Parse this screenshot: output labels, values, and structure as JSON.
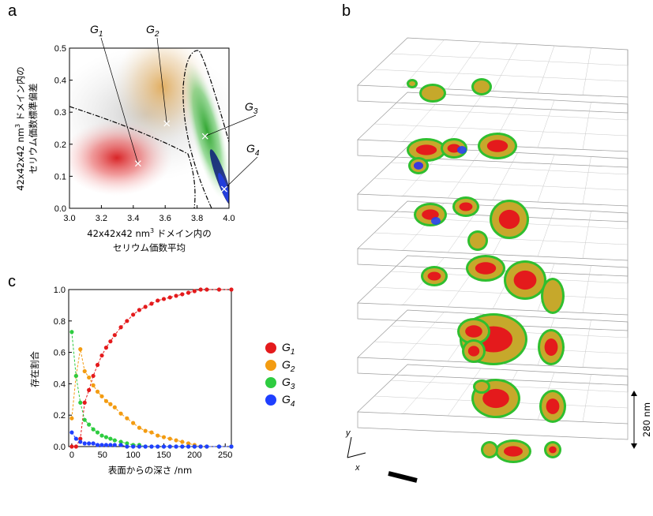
{
  "panels": {
    "a": "a",
    "b": "b",
    "c": "c"
  },
  "colors": {
    "G1": "#e41a1c",
    "G2": "#f39c12",
    "G3": "#2ecc40",
    "G4": "#1f3fff"
  },
  "chart_data": [
    {
      "type": "scatter",
      "panel": "a",
      "xlabel_line1": "42x42x42 nm",
      "xlabel_sup": "3",
      "xlabel_line1_rest": " ドメイン内の",
      "xlabel_line2": "セリウム価数平均",
      "ylabel_line1": "42x42x42 nm",
      "ylabel_sup": "3",
      "ylabel_line1_rest": " ドメイン内の",
      "ylabel_line2": "セリウム価数標準偏差",
      "xlim": [
        3.0,
        4.0
      ],
      "ylim": [
        0.0,
        0.5
      ],
      "xticks": [
        "3.0",
        "3.2",
        "3.4",
        "3.6",
        "3.8",
        "4.0"
      ],
      "yticks": [
        "0.0",
        "0.1",
        "0.2",
        "0.3",
        "0.4",
        "0.5"
      ],
      "centroids": [
        {
          "name": "G",
          "sub": "1",
          "x": 3.43,
          "y": 0.14
        },
        {
          "name": "G",
          "sub": "2",
          "x": 3.61,
          "y": 0.265
        },
        {
          "name": "G",
          "sub": "3",
          "x": 3.85,
          "y": 0.225
        },
        {
          "name": "G",
          "sub": "4",
          "x": 3.97,
          "y": 0.06
        }
      ]
    },
    {
      "type": "line",
      "panel": "c",
      "xlabel": "表面からの深さ /nm",
      "ylabel": "存在割合",
      "xlim": [
        -5,
        260
      ],
      "ylim": [
        0.0,
        1.0
      ],
      "xticks": [
        "0",
        "50",
        "100",
        "150",
        "200",
        "250"
      ],
      "yticks": [
        "0.0",
        "0.2",
        "0.4",
        "0.6",
        "0.8",
        "1.0"
      ],
      "x": [
        0,
        7,
        14,
        21,
        28,
        35,
        42,
        49,
        56,
        63,
        70,
        80,
        90,
        100,
        110,
        120,
        130,
        140,
        150,
        160,
        170,
        180,
        190,
        200,
        210,
        220,
        240,
        260
      ],
      "series": [
        {
          "name": "G",
          "sub": "1",
          "values": [
            0.0,
            0.0,
            0.05,
            0.28,
            0.36,
            0.45,
            0.52,
            0.58,
            0.63,
            0.67,
            0.71,
            0.76,
            0.8,
            0.84,
            0.87,
            0.89,
            0.91,
            0.93,
            0.94,
            0.95,
            0.96,
            0.97,
            0.98,
            0.99,
            1.0,
            1.0,
            1.0,
            1.0
          ]
        },
        {
          "name": "G",
          "sub": "2",
          "values": [
            0.18,
            0.45,
            0.62,
            0.48,
            0.44,
            0.39,
            0.35,
            0.32,
            0.29,
            0.27,
            0.25,
            0.21,
            0.18,
            0.15,
            0.12,
            0.1,
            0.09,
            0.07,
            0.06,
            0.05,
            0.04,
            0.03,
            0.02,
            0.01,
            0.0,
            0.0,
            0.0,
            0.0
          ]
        },
        {
          "name": "G",
          "sub": "3",
          "values": [
            0.73,
            0.45,
            0.28,
            0.17,
            0.14,
            0.11,
            0.09,
            0.07,
            0.06,
            0.05,
            0.04,
            0.03,
            0.02,
            0.01,
            0.01,
            0.0,
            0.0,
            0.0,
            0.0,
            0.0,
            0.0,
            0.0,
            0.0,
            0.0,
            0.0,
            0.0,
            0.0,
            0.0
          ]
        },
        {
          "name": "G",
          "sub": "4",
          "values": [
            0.09,
            0.05,
            0.03,
            0.02,
            0.02,
            0.02,
            0.01,
            0.01,
            0.01,
            0.01,
            0.01,
            0.01,
            0.0,
            0.0,
            0.0,
            0.0,
            0.0,
            0.0,
            0.0,
            0.0,
            0.0,
            0.0,
            0.0,
            0.0,
            0.0,
            0.0,
            0.0,
            0.0
          ]
        }
      ]
    }
  ],
  "panel_b": {
    "scale_label": "280 nm",
    "axis_y": "y",
    "axis_x": "x"
  }
}
